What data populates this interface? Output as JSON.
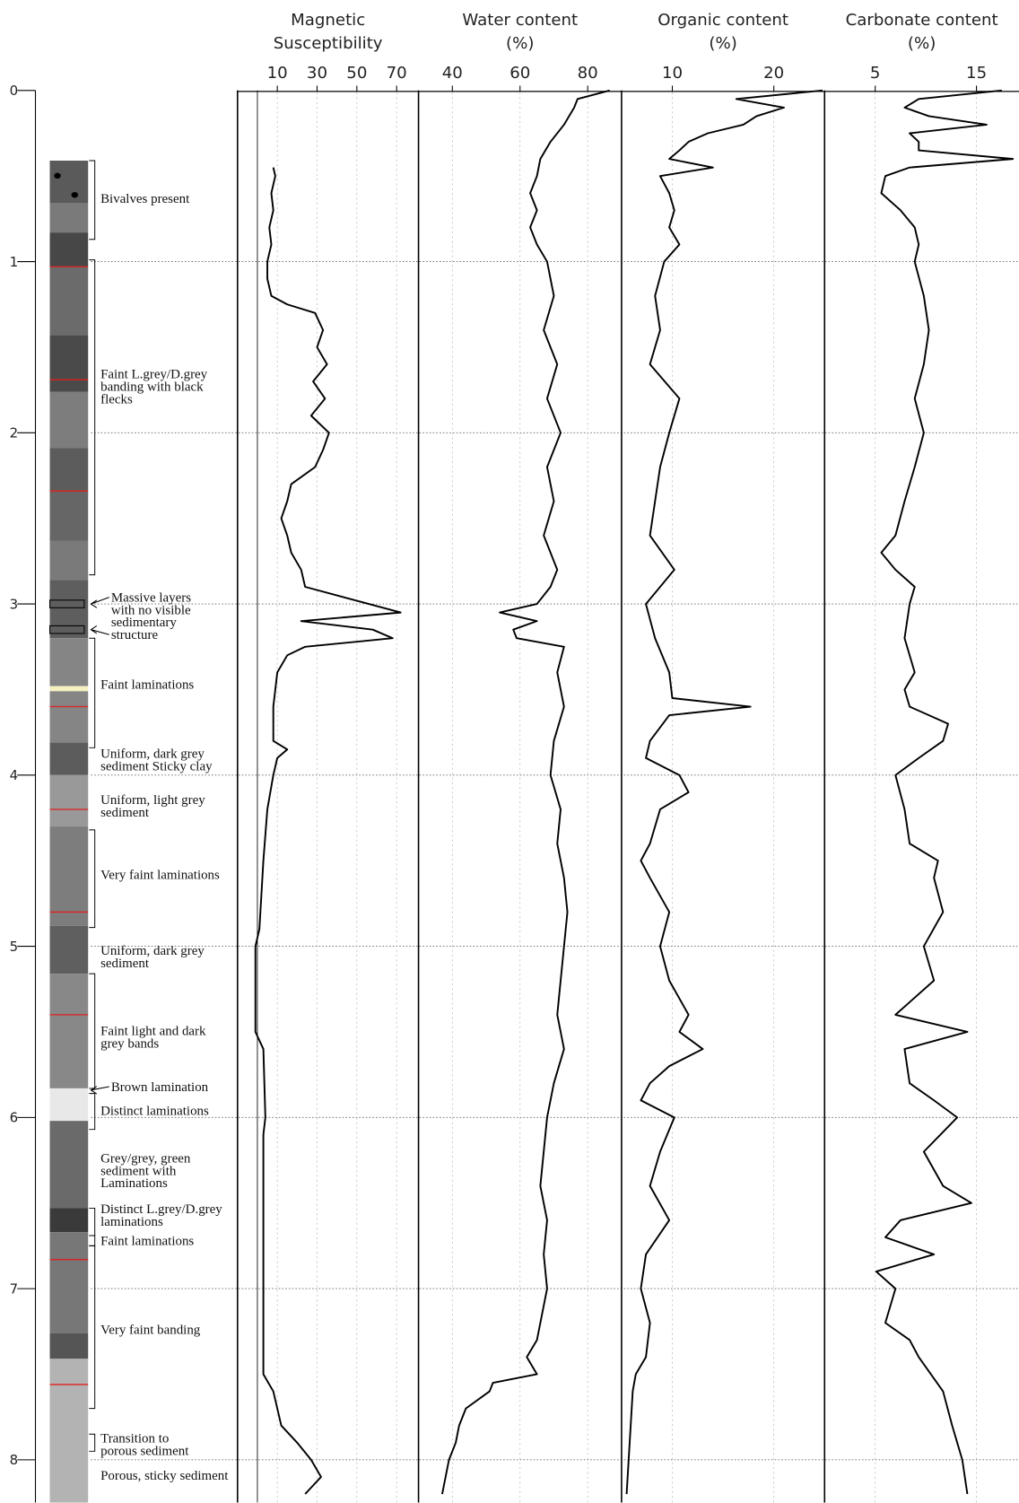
{
  "depth_axis": {
    "lim": [
      0,
      8.25
    ],
    "ticks": [
      0,
      1,
      2,
      3,
      4,
      5,
      6,
      7,
      8
    ]
  },
  "core_log": {
    "units": [
      {
        "top": 0.41,
        "bottom": 0.66,
        "color": "#5a5a5a"
      },
      {
        "top": 0.66,
        "bottom": 0.83,
        "color": "#7a7a7a"
      },
      {
        "top": 0.83,
        "bottom": 1.03,
        "color": "#474747"
      },
      {
        "top": 1.03,
        "bottom": 1.43,
        "color": "#6b6b6b"
      },
      {
        "top": 1.43,
        "bottom": 1.76,
        "color": "#4a4a4a"
      },
      {
        "top": 1.76,
        "bottom": 2.09,
        "color": "#7d7d7d"
      },
      {
        "top": 2.09,
        "bottom": 2.34,
        "color": "#5c5c5c"
      },
      {
        "top": 2.34,
        "bottom": 2.63,
        "color": "#666666"
      },
      {
        "top": 2.63,
        "bottom": 2.86,
        "color": "#7a7a7a"
      },
      {
        "top": 2.86,
        "bottom": 3.2,
        "color": "#5e5e5e"
      },
      {
        "top": 3.2,
        "bottom": 3.48,
        "color": "#858585"
      },
      {
        "top": 3.48,
        "bottom": 3.51,
        "color": "#f5f0c0"
      },
      {
        "top": 3.51,
        "bottom": 3.81,
        "color": "#858585"
      },
      {
        "top": 3.81,
        "bottom": 4.0,
        "color": "#5c5c5c"
      },
      {
        "top": 4.0,
        "bottom": 4.3,
        "color": "#999999"
      },
      {
        "top": 4.3,
        "bottom": 4.88,
        "color": "#7d7d7d"
      },
      {
        "top": 4.88,
        "bottom": 5.16,
        "color": "#5f5f5f"
      },
      {
        "top": 5.16,
        "bottom": 5.83,
        "color": "#888888"
      },
      {
        "top": 5.83,
        "bottom": 6.02,
        "color": "#e8e8e8"
      },
      {
        "top": 6.02,
        "bottom": 6.53,
        "color": "#6a6a6a"
      },
      {
        "top": 6.53,
        "bottom": 6.67,
        "color": "#3a3a3a"
      },
      {
        "top": 6.67,
        "bottom": 7.26,
        "color": "#777777"
      },
      {
        "top": 7.26,
        "bottom": 7.41,
        "color": "#555555"
      },
      {
        "top": 7.41,
        "bottom": 8.25,
        "color": "#b3b3b3"
      }
    ],
    "red_marks": [
      1.03,
      1.69,
      2.34,
      3.6,
      4.2,
      4.8,
      5.4,
      6.83,
      7.56
    ],
    "descriptions": [
      {
        "lines": [
          "Bivalves present"
        ],
        "depth": 0.63,
        "bracket": [
          0.41,
          0.87
        ]
      },
      {
        "lines": [
          "Faint L.grey/D.grey",
          "banding with black",
          "flecks"
        ],
        "depth": 1.73,
        "bracket": [
          0.99,
          2.83
        ]
      },
      {
        "lines": [
          "Massive layers",
          "with no visible",
          "sedimentary",
          "structure"
        ],
        "depth": 3.07,
        "arrows": [
          3.0,
          3.15
        ]
      },
      {
        "lines": [
          "Faint laminations"
        ],
        "depth": 3.47,
        "bracket": [
          3.2,
          3.84
        ]
      },
      {
        "lines": [
          "Uniform, dark grey",
          "sediment Sticky clay"
        ],
        "depth": 3.91
      },
      {
        "lines": [
          "Uniform, light grey",
          "sediment"
        ],
        "depth": 4.18
      },
      {
        "lines": [
          "Very faint laminations"
        ],
        "depth": 4.58,
        "bracket": [
          4.32,
          4.89
        ]
      },
      {
        "lines": [
          "Uniform, dark grey",
          "sediment"
        ],
        "depth": 5.06
      },
      {
        "lines": [
          "Faint light and dark",
          "grey bands"
        ],
        "depth": 5.53,
        "bracket": [
          5.16,
          5.83
        ]
      },
      {
        "lines": [
          "Brown lamination"
        ],
        "depth": 5.82,
        "arrows": [
          5.84
        ]
      },
      {
        "lines": [
          "Distinct laminations"
        ],
        "depth": 5.96,
        "bracket": [
          5.86,
          6.07
        ]
      },
      {
        "lines": [
          "Grey/grey, green",
          "sediment with",
          "Laminations"
        ],
        "depth": 6.31
      },
      {
        "lines": [
          "Distinct L.grey/D.grey",
          "laminations"
        ],
        "depth": 6.57,
        "bracket": [
          6.53,
          6.69
        ]
      },
      {
        "lines": [
          "Faint laminations"
        ],
        "depth": 6.72,
        "bracket": [
          6.69,
          6.75
        ]
      },
      {
        "lines": [
          "Very faint banding"
        ],
        "depth": 7.24,
        "bracket": [
          6.75,
          7.7
        ]
      },
      {
        "lines": [
          "Transition to",
          "porous sediment"
        ],
        "depth": 7.91,
        "bracket": [
          7.85,
          7.95
        ]
      },
      {
        "lines": [
          "Porous, sticky sediment"
        ],
        "depth": 8.09
      }
    ]
  },
  "chart_data": [
    {
      "type": "line",
      "title_lines": [
        "Magnetic",
        "Susceptibility"
      ],
      "color": "#000000",
      "grid": true,
      "zero_line": true,
      "ylim": [
        -10,
        81
      ],
      "yticks": [
        10,
        30,
        50,
        70
      ],
      "x": [
        0.45,
        0.5,
        0.6,
        0.7,
        0.8,
        0.9,
        1.0,
        1.1,
        1.2,
        1.25,
        1.3,
        1.4,
        1.5,
        1.6,
        1.7,
        1.8,
        1.9,
        2.0,
        2.1,
        2.2,
        2.3,
        2.4,
        2.5,
        2.6,
        2.7,
        2.8,
        2.9,
        3.0,
        3.05,
        3.1,
        3.15,
        3.2,
        3.25,
        3.3,
        3.4,
        3.5,
        3.6,
        3.7,
        3.8,
        3.85,
        3.9,
        4.0,
        4.2,
        4.5,
        4.9,
        5.0,
        5.5,
        5.6,
        6.0,
        6.1,
        6.5,
        7.0,
        7.5,
        7.6,
        7.8,
        7.9,
        8.0,
        8.1,
        8.2
      ],
      "values": [
        8,
        9,
        7,
        8,
        6,
        7,
        5,
        5,
        7,
        15,
        29,
        33,
        30,
        35,
        28,
        34,
        27,
        36,
        33,
        29,
        17,
        15,
        12,
        15,
        17,
        22,
        24,
        56,
        72,
        22,
        58,
        68,
        24,
        15,
        10,
        9,
        8,
        8,
        8,
        15,
        10,
        8,
        5,
        3,
        1,
        -1,
        -1,
        3,
        4,
        3,
        3,
        3,
        3,
        8,
        12,
        20,
        27,
        32,
        24
      ]
    },
    {
      "type": "line",
      "title_lines": [
        "Water content",
        "(%)"
      ],
      "color": "#000000",
      "grid": true,
      "ylim": [
        30,
        90
      ],
      "yticks": [
        40,
        60,
        80
      ],
      "x": [
        0,
        0.05,
        0.1,
        0.2,
        0.3,
        0.4,
        0.5,
        0.6,
        0.7,
        0.8,
        0.9,
        1.0,
        1.1,
        1.2,
        1.4,
        1.6,
        1.8,
        2.0,
        2.2,
        2.4,
        2.6,
        2.8,
        2.9,
        3.0,
        3.05,
        3.1,
        3.15,
        3.2,
        3.25,
        3.4,
        3.6,
        3.8,
        4.0,
        4.2,
        4.4,
        4.6,
        4.8,
        5.0,
        5.2,
        5.4,
        5.6,
        5.8,
        6.0,
        6.2,
        6.4,
        6.6,
        6.8,
        7.0,
        7.2,
        7.3,
        7.4,
        7.5,
        7.55,
        7.6,
        7.7,
        7.8,
        7.9,
        8.0,
        8.1,
        8.2
      ],
      "values": [
        86.5,
        77,
        76,
        73,
        69,
        66,
        65,
        63,
        65,
        63,
        65,
        68,
        69,
        70,
        67,
        71,
        68,
        72,
        68,
        70,
        67,
        71,
        69,
        65,
        54,
        65,
        58,
        59,
        73,
        71,
        73,
        70,
        69,
        72,
        71,
        73,
        74,
        73,
        72,
        71,
        73,
        70,
        68,
        67,
        66,
        68,
        67,
        68,
        66,
        65,
        62,
        65,
        52,
        51,
        44,
        42,
        41,
        39,
        38,
        37
      ]
    },
    {
      "type": "line",
      "title_lines": [
        "Organic content",
        "(%)"
      ],
      "color": "#000000",
      "grid": true,
      "ylim": [
        5,
        25
      ],
      "yticks": [
        10,
        20
      ],
      "x": [
        0,
        0.05,
        0.1,
        0.15,
        0.2,
        0.25,
        0.3,
        0.35,
        0.4,
        0.45,
        0.5,
        0.6,
        0.7,
        0.8,
        0.9,
        1.0,
        1.2,
        1.4,
        1.6,
        1.8,
        2.0,
        2.2,
        2.4,
        2.6,
        2.8,
        3.0,
        3.2,
        3.4,
        3.55,
        3.6,
        3.65,
        3.8,
        3.9,
        4.0,
        4.1,
        4.2,
        4.4,
        4.5,
        4.6,
        4.8,
        5.0,
        5.2,
        5.4,
        5.5,
        5.6,
        5.7,
        5.8,
        5.9,
        6.0,
        6.2,
        6.4,
        6.6,
        6.8,
        7.0,
        7.2,
        7.4,
        7.5,
        7.6,
        8.0,
        8.2
      ],
      "values": [
        24.8,
        16.3,
        21,
        18.3,
        17,
        13.5,
        11.6,
        10.7,
        9.7,
        14,
        8.8,
        9.7,
        10.2,
        9.7,
        10.7,
        9.2,
        8.3,
        8.8,
        7.8,
        10.7,
        9.7,
        8.8,
        8.3,
        7.8,
        10.2,
        7.4,
        8.3,
        9.7,
        10,
        17.7,
        9.7,
        7.8,
        7.4,
        10.7,
        11.6,
        8.8,
        7.8,
        6.9,
        7.8,
        9.7,
        8.8,
        9.7,
        11.6,
        10.7,
        13,
        9.7,
        7.8,
        6.9,
        10.2,
        8.8,
        7.8,
        9.7,
        7.4,
        6.9,
        7.8,
        7.4,
        6.4,
        6.1,
        5.7,
        5.5
      ]
    },
    {
      "type": "line",
      "title_lines": [
        "Carbonate content",
        "(%)"
      ],
      "color": "#000000",
      "grid": true,
      "ylim": [
        0,
        19.2
      ],
      "yticks": [
        5,
        15
      ],
      "x": [
        0,
        0.05,
        0.1,
        0.15,
        0.2,
        0.25,
        0.3,
        0.35,
        0.4,
        0.45,
        0.5,
        0.6,
        0.7,
        0.8,
        0.9,
        1.0,
        1.2,
        1.4,
        1.6,
        1.8,
        2.0,
        2.2,
        2.4,
        2.6,
        2.7,
        2.8,
        2.9,
        3.0,
        3.2,
        3.4,
        3.5,
        3.6,
        3.7,
        3.8,
        3.9,
        4.0,
        4.2,
        4.4,
        4.5,
        4.6,
        4.8,
        5.0,
        5.2,
        5.4,
        5.5,
        5.6,
        5.8,
        5.9,
        6.0,
        6.2,
        6.4,
        6.5,
        6.6,
        6.7,
        6.8,
        6.9,
        7.0,
        7.2,
        7.3,
        7.4,
        7.6,
        7.8,
        8.0,
        8.2
      ],
      "values": [
        17.5,
        9.3,
        7.9,
        10.3,
        16,
        8.4,
        9.3,
        9.3,
        18.6,
        8.4,
        6,
        5.6,
        7.5,
        8.9,
        9.3,
        8.9,
        9.8,
        10.3,
        9.8,
        8.9,
        9.8,
        8.9,
        7.9,
        7,
        5.6,
        7,
        8.9,
        8.4,
        7.9,
        8.9,
        7.9,
        8.4,
        12.2,
        11.7,
        9.3,
        7,
        7.9,
        8.4,
        11.2,
        10.8,
        11.7,
        9.8,
        10.8,
        7,
        14.1,
        7.9,
        8.4,
        10.8,
        13.1,
        9.8,
        11.7,
        14.5,
        7.5,
        6,
        10.8,
        5.1,
        7,
        6,
        8.4,
        9.3,
        11.7,
        12.6,
        13.6,
        14.1
      ]
    }
  ]
}
